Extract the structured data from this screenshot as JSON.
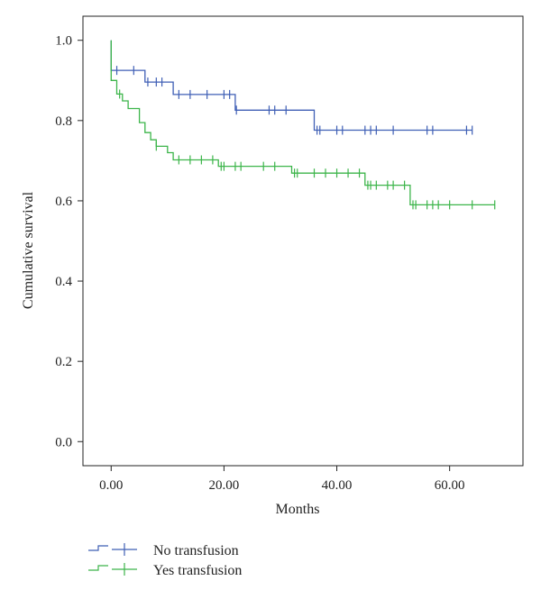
{
  "chart_data": {
    "type": "line",
    "subtype": "kaplan-meier step",
    "title": "",
    "xlabel": "Months",
    "ylabel": "Cumulative survival",
    "xlim": [
      -5,
      73
    ],
    "ylim": [
      -0.06,
      1.06
    ],
    "x_ticks": [
      0,
      20,
      40,
      60
    ],
    "x_tick_labels": [
      "0.00",
      "20.00",
      "40.00",
      "60.00"
    ],
    "y_ticks": [
      0.0,
      0.2,
      0.4,
      0.6,
      0.8,
      1.0
    ],
    "y_tick_labels": [
      "0.0",
      "0.2",
      "0.4",
      "0.6",
      "0.8",
      "1.0"
    ],
    "grid": false,
    "legend_position": "bottom-left",
    "series": [
      {
        "name": "No transfusion",
        "color": "#3f5fb5",
        "steps": [
          [
            0,
            1.0
          ],
          [
            0,
            0.925
          ],
          [
            6,
            0.925
          ],
          [
            6,
            0.896
          ],
          [
            11,
            0.896
          ],
          [
            11,
            0.865
          ],
          [
            22,
            0.865
          ],
          [
            22,
            0.826
          ],
          [
            36,
            0.826
          ],
          [
            36,
            0.776
          ],
          [
            64,
            0.776
          ]
        ],
        "censored_x": [
          1,
          4,
          6.5,
          8,
          9,
          12,
          14,
          17,
          20,
          21,
          22.2,
          28,
          29,
          31,
          36.5,
          37,
          40,
          41,
          45,
          46,
          47,
          50,
          56,
          57,
          63,
          64
        ]
      },
      {
        "name": "Yes transfusion",
        "color": "#3cb54a",
        "steps": [
          [
            0,
            1.0
          ],
          [
            0,
            0.9
          ],
          [
            1,
            0.9
          ],
          [
            1,
            0.866
          ],
          [
            2,
            0.866
          ],
          [
            2,
            0.849
          ],
          [
            3,
            0.849
          ],
          [
            3,
            0.83
          ],
          [
            5,
            0.83
          ],
          [
            5,
            0.795
          ],
          [
            6,
            0.795
          ],
          [
            6,
            0.77
          ],
          [
            7,
            0.77
          ],
          [
            7,
            0.752
          ],
          [
            8,
            0.752
          ],
          [
            8,
            0.736
          ],
          [
            10,
            0.736
          ],
          [
            10,
            0.72
          ],
          [
            11,
            0.72
          ],
          [
            11,
            0.702
          ],
          [
            19,
            0.702
          ],
          [
            19,
            0.686
          ],
          [
            32,
            0.686
          ],
          [
            32,
            0.669
          ],
          [
            45,
            0.669
          ],
          [
            45,
            0.639
          ],
          [
            53,
            0.639
          ],
          [
            53,
            0.59
          ],
          [
            68,
            0.59
          ]
        ],
        "censored_x": [
          1.5,
          8,
          12,
          14,
          16,
          18,
          19.5,
          20,
          22,
          23,
          27,
          29,
          32.5,
          33,
          36,
          38,
          40,
          42,
          44,
          45.5,
          46,
          47,
          49,
          50,
          52,
          53.5,
          54,
          56,
          57,
          58,
          60,
          64,
          68
        ]
      }
    ]
  }
}
